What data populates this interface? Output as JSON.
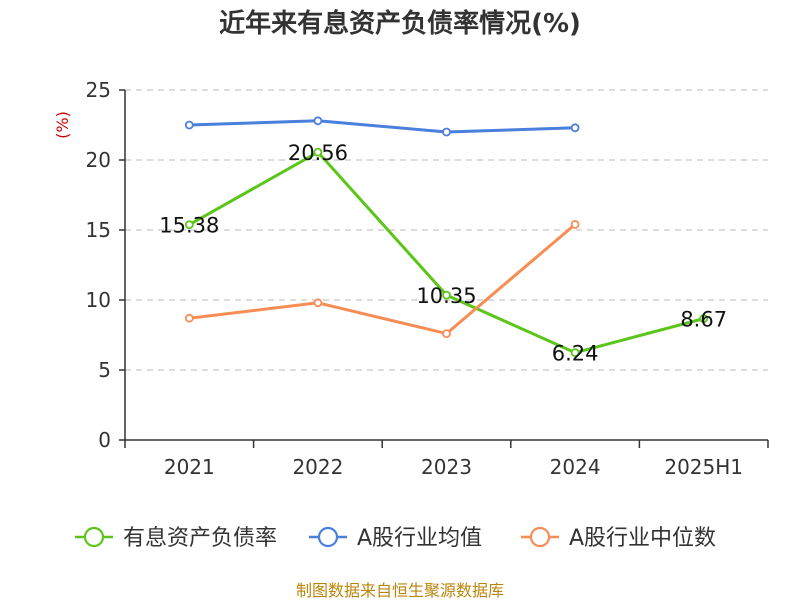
{
  "chart_data": {
    "type": "line",
    "title": "近年来有息资产负债率情况(%)",
    "ylabel": "(%)",
    "categories": [
      "2021",
      "2022",
      "2023",
      "2024",
      "2025H1"
    ],
    "ylim": [
      0,
      25
    ],
    "yticks": [
      0,
      5,
      10,
      15,
      20,
      25
    ],
    "grid": "horizontal-dashed",
    "legend_position": "bottom",
    "series": [
      {
        "name": "有息资产负债率",
        "color": "#5cc51a",
        "values": [
          15.38,
          20.56,
          10.35,
          6.24,
          8.67
        ],
        "labels": [
          "15.38",
          "20.56",
          "10.35",
          "6.24",
          "8.67"
        ]
      },
      {
        "name": "A股行业均值",
        "color": "#4a7fdb",
        "values": [
          22.5,
          22.8,
          22.0,
          22.3,
          null
        ]
      },
      {
        "name": "A股行业中位数",
        "color": "#f78d55",
        "values": [
          8.7,
          9.8,
          7.6,
          15.4,
          null
        ]
      }
    ]
  },
  "source": "制图数据来自恒生聚源数据库"
}
